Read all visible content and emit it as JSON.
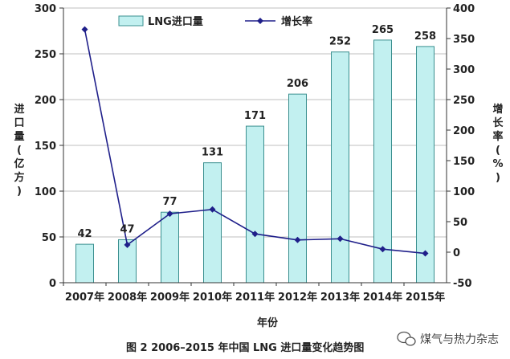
{
  "chart_data": {
    "type": "bar",
    "categories": [
      "2007年",
      "2008年",
      "2009年",
      "2010年",
      "2011年",
      "2012年",
      "2013年",
      "2014年",
      "2015年"
    ],
    "series": [
      {
        "name": "LNG进口量",
        "type": "bar",
        "axis": "left",
        "values": [
          42,
          47,
          77,
          131,
          171,
          206,
          252,
          265,
          258
        ]
      },
      {
        "name": "增长率",
        "type": "line",
        "axis": "right",
        "values": [
          365,
          12,
          63,
          70,
          30,
          20,
          22,
          5,
          -2
        ]
      }
    ],
    "data_labels": [
      "42",
      "47",
      "77",
      "131",
      "171",
      "206",
      "252",
      "265",
      "258"
    ],
    "xlabel": "年份",
    "ylabel": [
      "进",
      "口",
      "量",
      "(",
      "亿",
      "方",
      ")"
    ],
    "y2label": [
      "增",
      "长",
      "率",
      "(",
      "%",
      ")"
    ],
    "ylim": [
      0,
      300
    ],
    "yticks": [
      "0",
      "50",
      "100",
      "150",
      "200",
      "250",
      "300"
    ],
    "y2lim": [
      -50,
      400
    ],
    "y2ticks": [
      "-50",
      "0",
      "50",
      "100",
      "150",
      "200",
      "250",
      "300",
      "350",
      "400"
    ],
    "grid": "horizontal",
    "legend_position": "top",
    "colors": {
      "bar_fill": "#c2f0f0",
      "bar_stroke": "#3a8f8f",
      "line": "#1f1f8a",
      "marker": "#1f1f8a",
      "grid": "#bfbfbf"
    }
  },
  "caption": "图 2   2006–2015 年中国 LNG 进口量变化趋势图",
  "watermark": "煤气与热力杂志",
  "watermark_icon": "wechat-icon"
}
